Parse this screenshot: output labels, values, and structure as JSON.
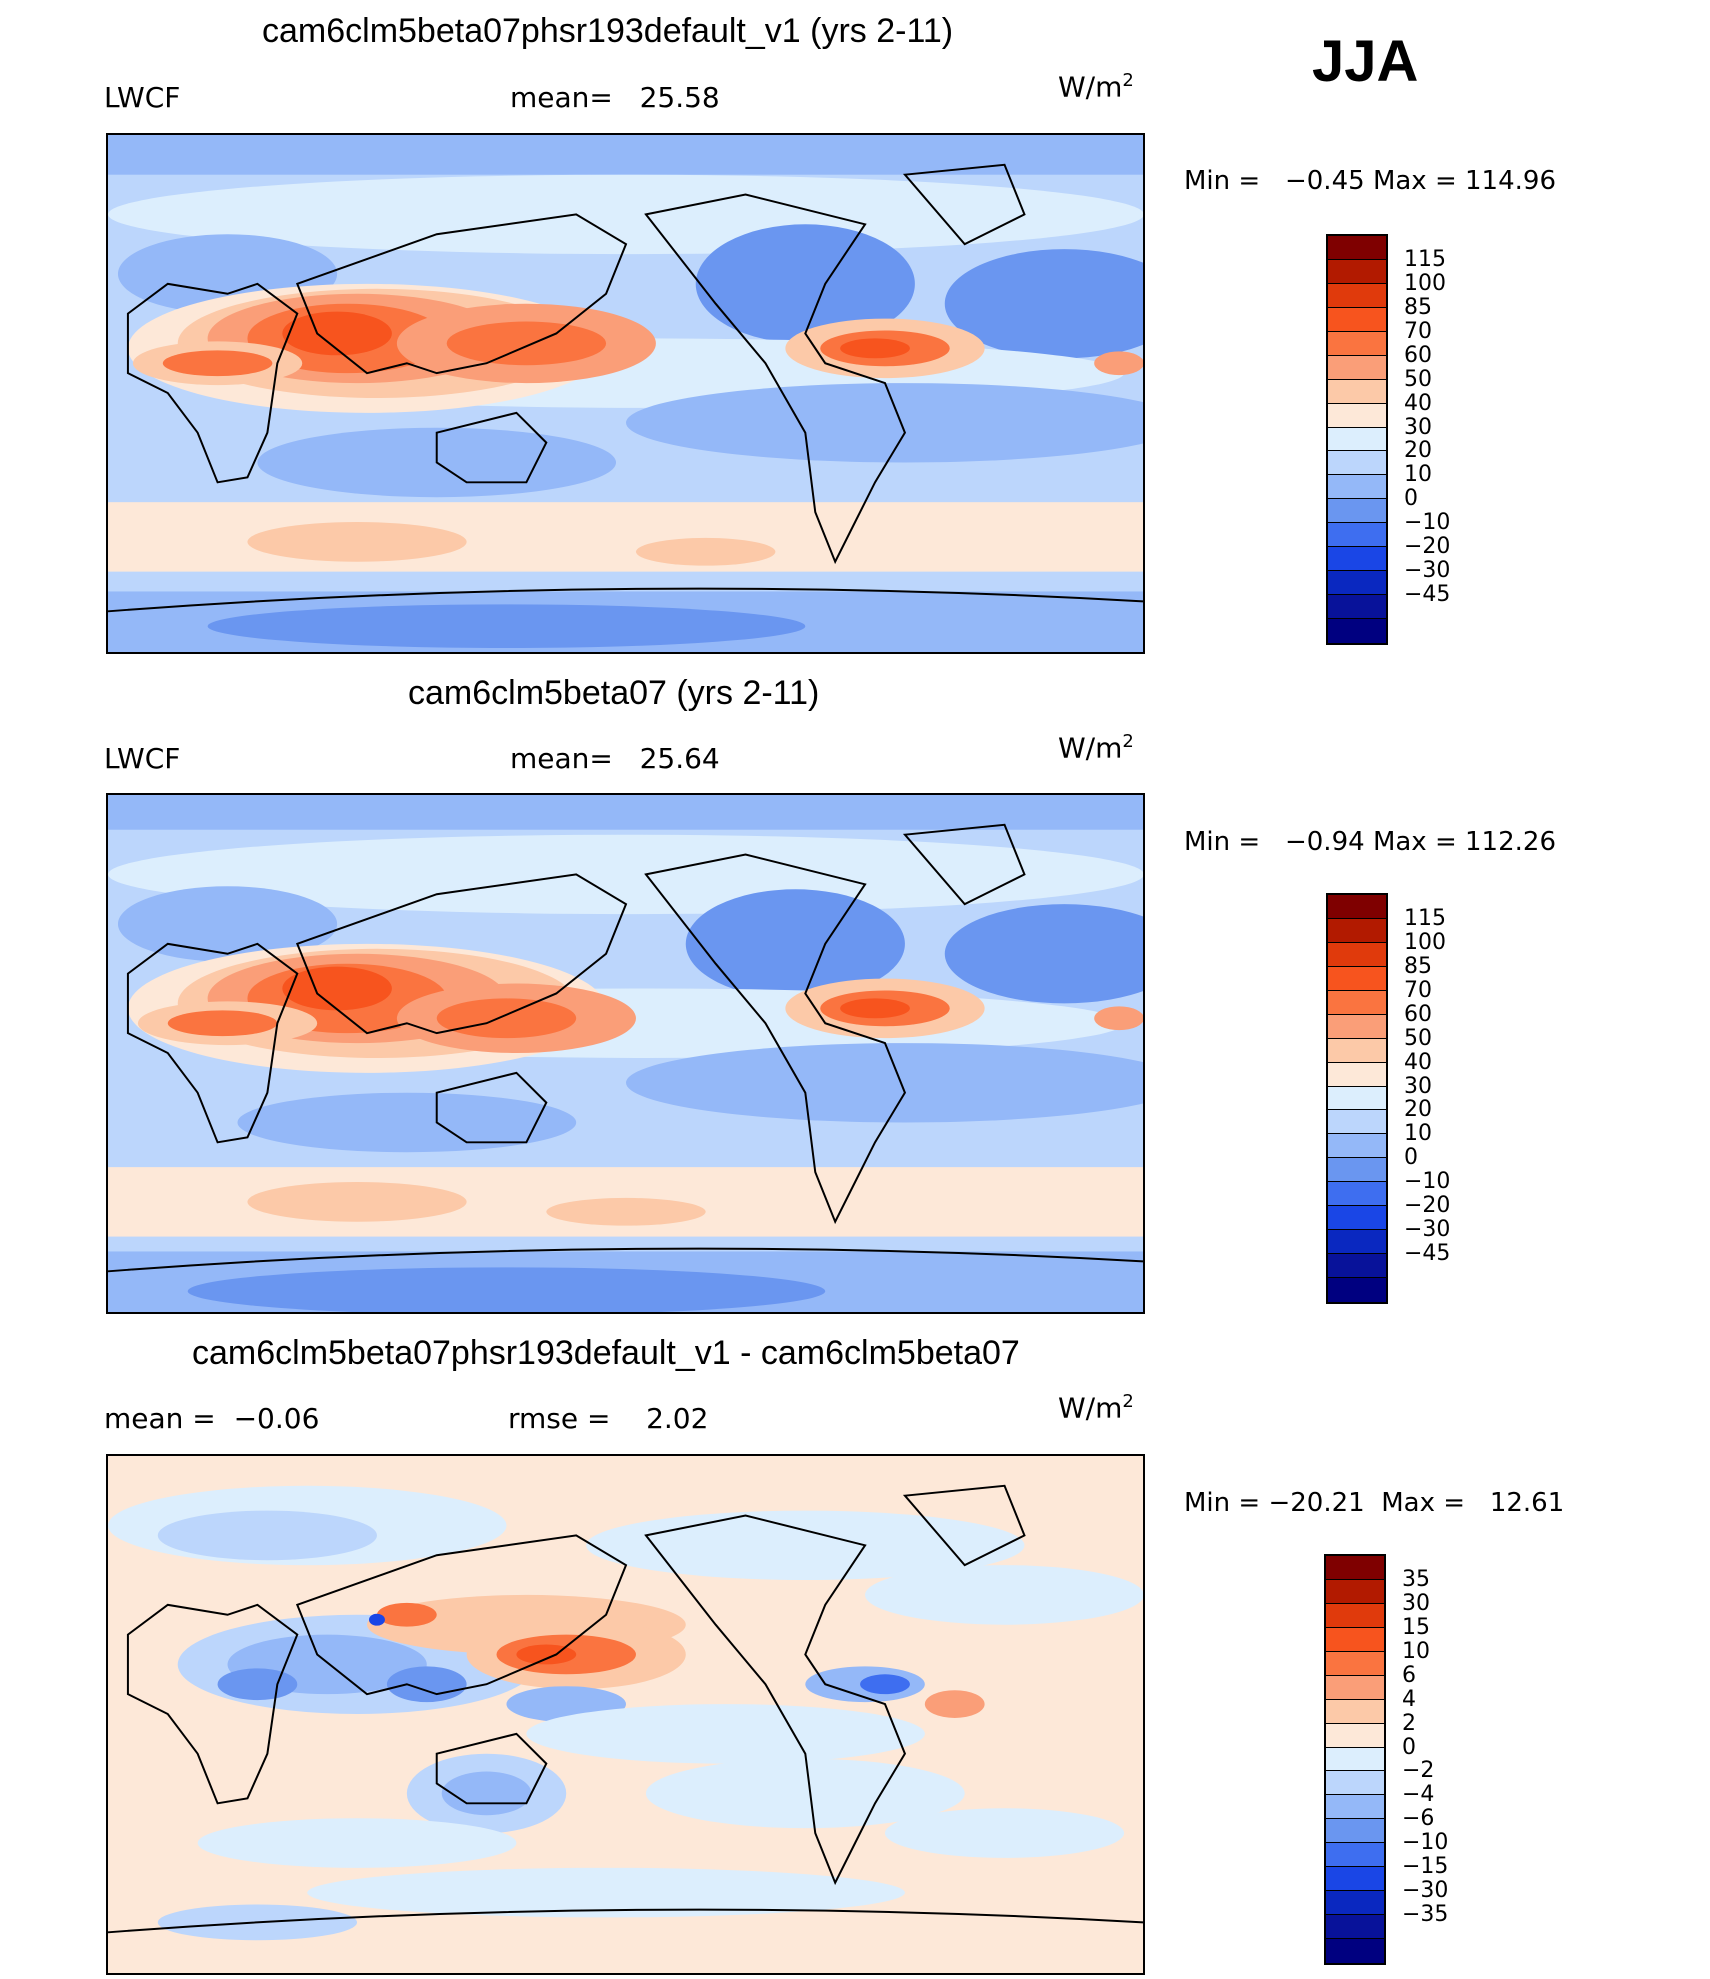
{
  "season": "JJA",
  "units_main": "W/m",
  "units_sup": "2",
  "colors": {
    "abs_levels": [
      "#7f0000",
      "#b21a00",
      "#e03a0c",
      "#f7541e",
      "#fa7440",
      "#fa9e78",
      "#fcc9a8",
      "#fde8d8",
      "#dceefd",
      "#bcd6fc",
      "#94b8f8",
      "#6a96f0",
      "#3e6ef0",
      "#1a46e6",
      "#0a28c0",
      "#08129a",
      "#000080"
    ],
    "diff_levels": [
      "#7f0000",
      "#b21a00",
      "#e03a0c",
      "#f7541e",
      "#fa7440",
      "#fa9e78",
      "#fcc9a8",
      "#fde8d8",
      "#dceefd",
      "#bcd6fc",
      "#94b8f8",
      "#6a96f0",
      "#3e6ef0",
      "#1a46e6",
      "#0a28c0",
      "#08129a",
      "#000080"
    ]
  },
  "chart_data": [
    {
      "type": "heatmap",
      "title": "cam6clm5beta07phsr193default_v1 (yrs 2-11)",
      "variable": "LWCF",
      "mean_label": "mean=",
      "mean": "25.58",
      "min_label": "Min  =",
      "min": "−0.45",
      "max_label": "Max  =",
      "max": "114.96",
      "colorbar_ticks": [
        "115",
        "100",
        "85",
        "70",
        "60",
        "50",
        "40",
        "30",
        "20",
        "10",
        "0",
        "−10",
        "−20",
        "−30",
        "−45"
      ]
    },
    {
      "type": "heatmap",
      "title": "cam6clm5beta07 (yrs 2-11)",
      "variable": "LWCF",
      "mean_label": "mean=",
      "mean": "25.64",
      "min_label": "Min  =",
      "min": "−0.94",
      "max_label": "Max  =",
      "max": "112.26",
      "colorbar_ticks": [
        "115",
        "100",
        "85",
        "70",
        "60",
        "50",
        "40",
        "30",
        "20",
        "10",
        "0",
        "−10",
        "−20",
        "−30",
        "−45"
      ]
    },
    {
      "type": "heatmap",
      "title": "cam6clm5beta07phsr193default_v1 - cam6clm5beta07",
      "mean_label": "mean  =",
      "mean": "−0.06",
      "rmse_label": "rmse  =",
      "rmse": "2.02",
      "min_label": "Min  =",
      "min": "−20.21",
      "max_label": "Max  =",
      "max": "12.61",
      "colorbar_ticks": [
        "35",
        "30",
        "15",
        "10",
        "6",
        "4",
        "2",
        "0",
        "−2",
        "−4",
        "−6",
        "−10",
        "−15",
        "−30",
        "−35"
      ]
    }
  ]
}
